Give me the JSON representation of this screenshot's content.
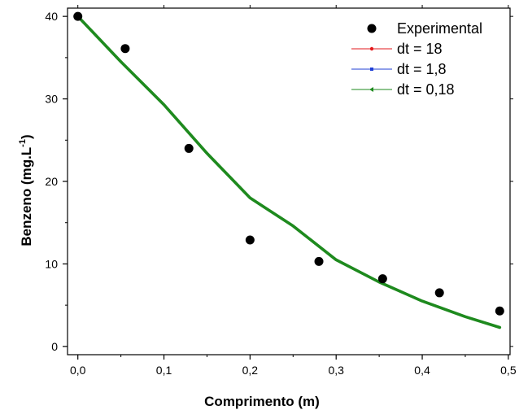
{
  "chart_data": {
    "type": "scatter",
    "xlabel": "Comprimento (m)",
    "ylabel": "Benzeno (mg.L",
    "ylabel_sup": "-1",
    "ylabel_close": ")",
    "xlim": [
      -0.012,
      0.502
    ],
    "ylim": [
      -1.0,
      41.0
    ],
    "x_ticks": [
      0.0,
      0.1,
      0.2,
      0.3,
      0.4,
      0.5
    ],
    "x_tick_labels": [
      "0,0",
      "0,1",
      "0,2",
      "0,3",
      "0,4",
      "0,5"
    ],
    "y_ticks": [
      0,
      10,
      20,
      30,
      40
    ],
    "y_tick_labels": [
      "0",
      "10",
      "20",
      "30",
      "40"
    ],
    "grid": false,
    "legend_position": "top-right",
    "series": [
      {
        "name": "Experimental",
        "kind": "points",
        "color": "#000000",
        "x": [
          0.0,
          0.055,
          0.129,
          0.2,
          0.28,
          0.354,
          0.42,
          0.49
        ],
        "y": [
          40.0,
          36.1,
          24.0,
          12.9,
          10.3,
          8.2,
          6.5,
          4.3
        ]
      },
      {
        "name": "dt = 18",
        "kind": "line",
        "color": "#e31a1c",
        "x": [
          0.0,
          0.05,
          0.1,
          0.15,
          0.2,
          0.25,
          0.3,
          0.35,
          0.4,
          0.45,
          0.49
        ],
        "y": [
          40.0,
          34.5,
          29.3,
          23.4,
          18.0,
          14.6,
          10.5,
          7.8,
          5.5,
          3.6,
          2.3
        ]
      },
      {
        "name": "dt = 1,8",
        "kind": "line",
        "color": "#1f3fd6",
        "x": [
          0.0,
          0.05,
          0.1,
          0.15,
          0.2,
          0.25,
          0.3,
          0.35,
          0.4,
          0.45,
          0.49
        ],
        "y": [
          40.0,
          34.5,
          29.3,
          23.4,
          18.0,
          14.6,
          10.5,
          7.8,
          5.5,
          3.6,
          2.3
        ]
      },
      {
        "name": "dt = 0,18",
        "kind": "line",
        "color": "#1e8a1e",
        "x": [
          0.0,
          0.05,
          0.1,
          0.15,
          0.2,
          0.25,
          0.3,
          0.35,
          0.4,
          0.45,
          0.49
        ],
        "y": [
          40.0,
          34.5,
          29.3,
          23.4,
          18.0,
          14.6,
          10.5,
          7.8,
          5.5,
          3.6,
          2.3
        ]
      }
    ]
  }
}
